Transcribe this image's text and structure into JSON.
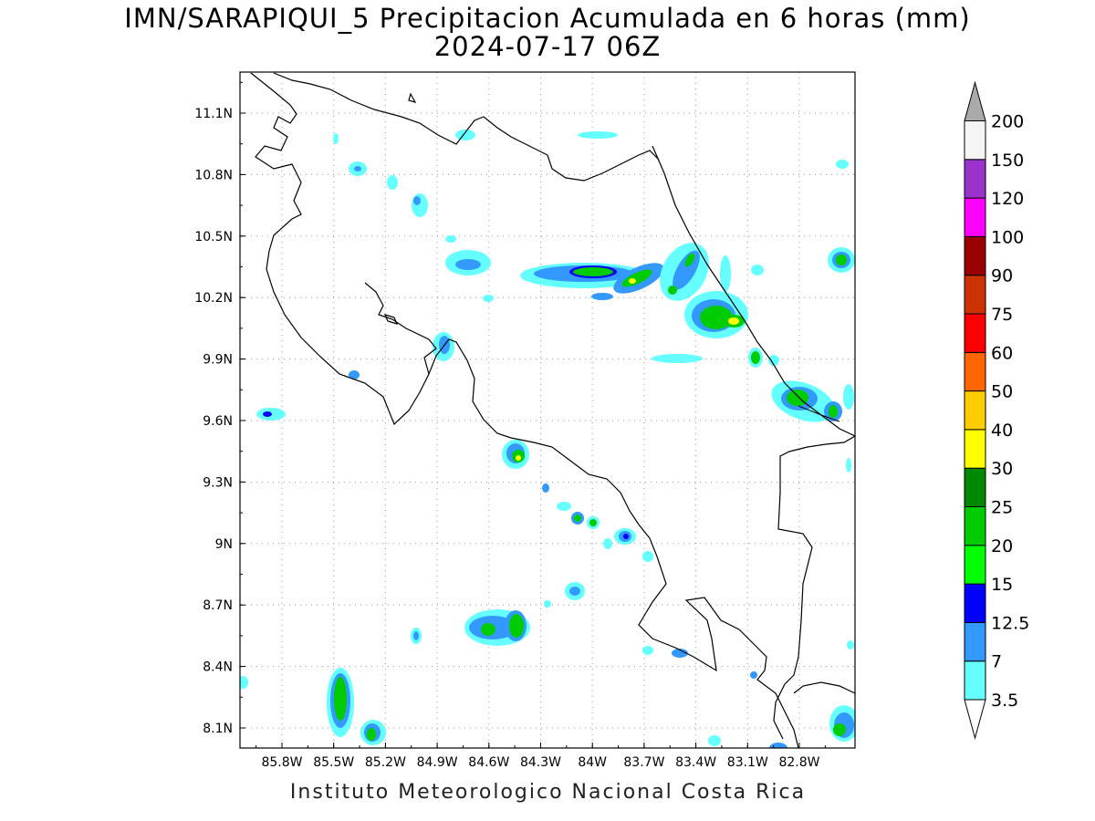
{
  "title": {
    "line1": "IMN/SARAPIQUI_5 Precipitacion Acumulada en 6 horas (mm)",
    "line2": "2024-07-17 06Z"
  },
  "footer": "Instituto Meteorologico Nacional Costa Rica",
  "map": {
    "lon_range": [
      -86.07,
      -82.67
    ],
    "lat_range": [
      8.0,
      11.2
    ],
    "lon_labels": [
      "85.8W",
      "85.5W",
      "85.2W",
      "84.9W",
      "84.6W",
      "84.3W",
      "84W",
      "83.7W",
      "83.4W",
      "83.1W",
      "82.8W"
    ],
    "lat_labels": [
      "11.1N",
      "10.8N",
      "10.5N",
      "10.2N",
      "9.9N",
      "9.6N",
      "9.3N",
      "9N",
      "8.7N",
      "8.4N",
      "8.1N"
    ],
    "grid": "dotted"
  },
  "legend": {
    "levels": [
      "3.5",
      "7",
      "12.5",
      "15",
      "20",
      "25",
      "30",
      "40",
      "50",
      "60",
      "75",
      "90",
      "100",
      "120",
      "150",
      "200"
    ],
    "colors": [
      "#66ffff",
      "#3399ff",
      "#0000ff",
      "#00ff00",
      "#00cc00",
      "#008800",
      "#ffff00",
      "#ffcc00",
      "#ff6600",
      "#ff0000",
      "#cc3300",
      "#990000",
      "#ff00ff",
      "#9933cc",
      "#f5f5f5",
      "#aaaaaa"
    ]
  },
  "colors": {
    "c35": "#66ffff",
    "c7": "#3399ff",
    "c125": "#0000ff",
    "c15": "#00ff00",
    "c20": "#00cc00",
    "c25": "#008800",
    "c30": "#ffff00",
    "coast": "#000000",
    "grid": "#999999"
  }
}
